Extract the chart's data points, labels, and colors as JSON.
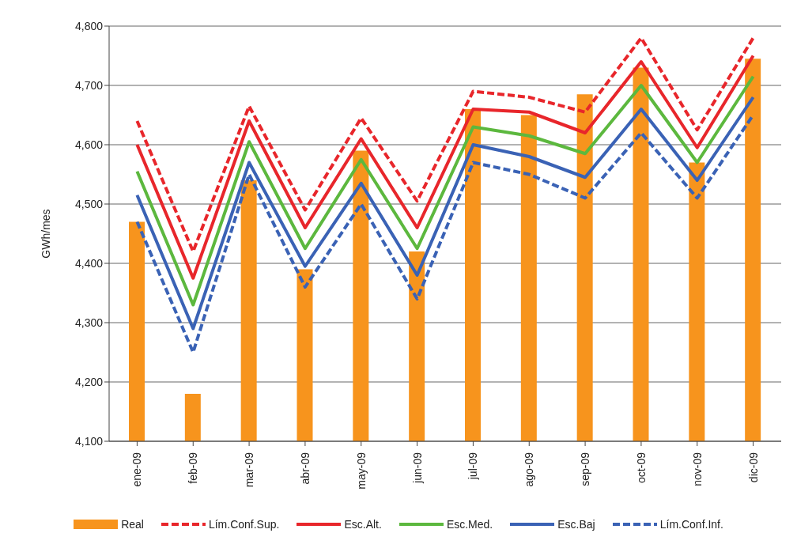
{
  "chart_data": {
    "type": "bar",
    "ylabel": "GWh/mes",
    "categories": [
      "ene-09",
      "feb-09",
      "mar-09",
      "abr-09",
      "may-09",
      "jun-09",
      "jul-09",
      "ago-09",
      "sep-09",
      "oct-09",
      "nov-09",
      "dic-09"
    ],
    "series": [
      {
        "name": "Real",
        "color": "#f7941d",
        "values": [
          4470,
          4180,
          4540,
          4390,
          4590,
          4420,
          4660,
          4650,
          4685,
          4730,
          4570,
          4745
        ]
      },
      {
        "name": "Lím.Conf.Sup.",
        "type": "line",
        "line_style": "dashed",
        "color": "#e8262b",
        "values": [
          4640,
          4420,
          4665,
          4490,
          4645,
          4505,
          4690,
          4680,
          4655,
          4780,
          4625,
          4780
        ]
      },
      {
        "name": "Esc.Alt.",
        "type": "line",
        "line_style": "solid",
        "color": "#e8262b",
        "values": [
          4600,
          4375,
          4640,
          4460,
          4610,
          4460,
          4660,
          4655,
          4620,
          4740,
          4595,
          4750
        ]
      },
      {
        "name": "Esc.Med.",
        "type": "line",
        "line_style": "solid",
        "color": "#5cb83e",
        "values": [
          4555,
          4330,
          4605,
          4425,
          4575,
          4425,
          4630,
          4615,
          4585,
          4700,
          4570,
          4715
        ]
      },
      {
        "name": "Esc.Baj",
        "type": "line",
        "line_style": "solid",
        "color": "#3a62b5",
        "values": [
          4515,
          4290,
          4570,
          4395,
          4535,
          4380,
          4600,
          4580,
          4545,
          4660,
          4540,
          4680
        ]
      },
      {
        "name": "Lím.Conf.Inf.",
        "type": "line",
        "line_style": "dashed",
        "color": "#3a62b5",
        "values": [
          4470,
          4250,
          4550,
          4360,
          4500,
          4340,
          4570,
          4550,
          4510,
          4620,
          4510,
          4650
        ]
      }
    ],
    "ylim": [
      4100,
      4800
    ],
    "yticks": [
      {
        "value": 4100,
        "label": "4,100"
      },
      {
        "value": 4200,
        "label": "4,200"
      },
      {
        "value": 4300,
        "label": "4,300"
      },
      {
        "value": 4400,
        "label": "4,400"
      },
      {
        "value": 4500,
        "label": "4,500"
      },
      {
        "value": 4600,
        "label": "4,600"
      },
      {
        "value": 4700,
        "label": "4,700"
      },
      {
        "value": 4800,
        "label": "4,800"
      }
    ],
    "grid": "y",
    "legend": "bottom",
    "marker": "none"
  }
}
